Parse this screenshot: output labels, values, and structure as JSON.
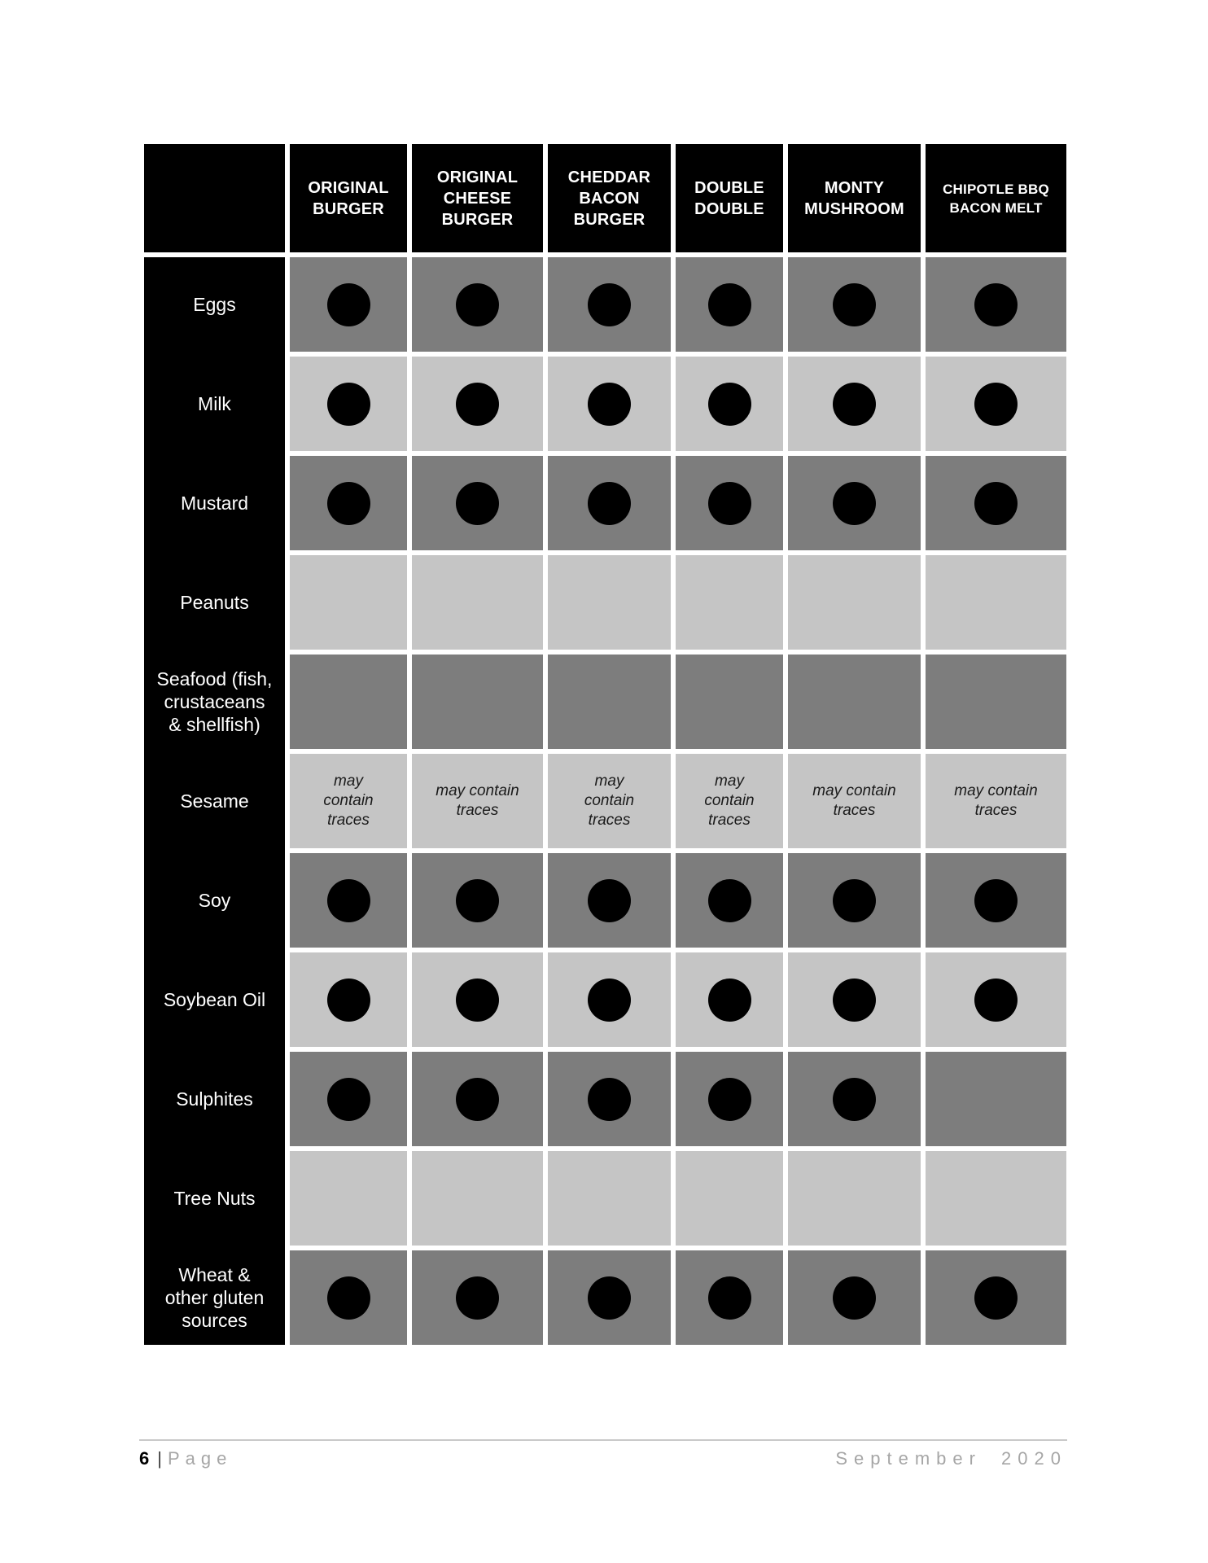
{
  "allergen_matrix": {
    "columns": [
      "ORIGINAL BURGER",
      "ORIGINAL CHEESE BURGER",
      "CHEDDAR BACON BURGER",
      "DOUBLE DOUBLE",
      "MONTY MUSHROOM",
      "CHIPOTLE BBQ BACON MELT"
    ],
    "rows": [
      {
        "label": "Eggs",
        "cells": [
          "dot",
          "dot",
          "dot",
          "dot",
          "dot",
          "dot"
        ]
      },
      {
        "label": "Milk",
        "cells": [
          "dot",
          "dot",
          "dot",
          "dot",
          "dot",
          "dot"
        ]
      },
      {
        "label": "Mustard",
        "cells": [
          "dot",
          "dot",
          "dot",
          "dot",
          "dot",
          "dot"
        ]
      },
      {
        "label": "Peanuts",
        "cells": [
          "",
          "",
          "",
          "",
          "",
          ""
        ]
      },
      {
        "label": "Seafood (fish, crustaceans & shellfish)",
        "cells": [
          "",
          "",
          "",
          "",
          "",
          ""
        ]
      },
      {
        "label": "Sesame",
        "cells": [
          "may contain traces",
          "may contain traces",
          "may contain traces",
          "may contain traces",
          "may contain traces",
          "may contain traces"
        ]
      },
      {
        "label": "Soy",
        "cells": [
          "dot",
          "dot",
          "dot",
          "dot",
          "dot",
          "dot"
        ]
      },
      {
        "label": "Soybean Oil",
        "cells": [
          "dot",
          "dot",
          "dot",
          "dot",
          "dot",
          "dot"
        ]
      },
      {
        "label": "Sulphites",
        "cells": [
          "dot",
          "dot",
          "dot",
          "dot",
          "dot",
          ""
        ]
      },
      {
        "label": "Tree Nuts",
        "cells": [
          "",
          "",
          "",
          "",
          "",
          ""
        ]
      },
      {
        "label": "Wheat & other gluten sources",
        "cells": [
          "dot",
          "dot",
          "dot",
          "dot",
          "dot",
          "dot"
        ]
      }
    ]
  },
  "footer": {
    "page_number": "6",
    "separator": "|",
    "page_label": "Page",
    "date": "September 2020"
  },
  "colors": {
    "header_bg": "#000000",
    "header_text": "#ffffff",
    "label_bg": "#000000",
    "label_text": "#ffffff",
    "row_dark": "#7d7d7d",
    "row_light": "#c5c5c5",
    "dot": "#000000",
    "traces_text": "#1a1a1a",
    "footer_gray": "#a6a6a6",
    "footer_page_number": "#000000",
    "footer_rule": "#c9c9c9"
  }
}
